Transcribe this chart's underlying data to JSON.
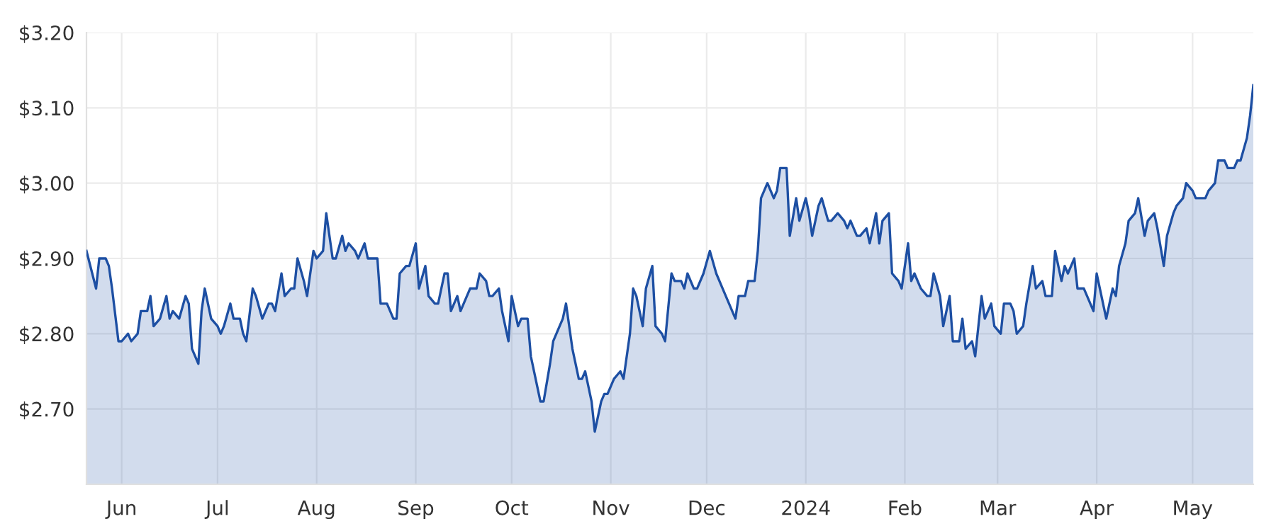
{
  "chart_data": {
    "type": "area",
    "x": [
      "2023-05-21",
      "2023-05-24",
      "2023-05-25",
      "2023-05-27",
      "2023-05-28",
      "2023-05-29",
      "2023-05-31",
      "2023-06-01",
      "2023-06-03",
      "2023-06-04",
      "2023-06-06",
      "2023-06-07",
      "2023-06-09",
      "2023-06-10",
      "2023-06-11",
      "2023-06-13",
      "2023-06-15",
      "2023-06-16",
      "2023-06-17",
      "2023-06-19",
      "2023-06-21",
      "2023-06-22",
      "2023-06-23",
      "2023-06-25",
      "2023-06-26",
      "2023-06-27",
      "2023-06-29",
      "2023-07-01",
      "2023-07-02",
      "2023-07-03",
      "2023-07-05",
      "2023-07-06",
      "2023-07-08",
      "2023-07-09",
      "2023-07-10",
      "2023-07-12",
      "2023-07-13",
      "2023-07-15",
      "2023-07-17",
      "2023-07-18",
      "2023-07-19",
      "2023-07-21",
      "2023-07-22",
      "2023-07-24",
      "2023-07-25",
      "2023-07-26",
      "2023-07-28",
      "2023-07-29",
      "2023-07-31",
      "2023-08-01",
      "2023-08-03",
      "2023-08-04",
      "2023-08-06",
      "2023-08-07",
      "2023-08-09",
      "2023-08-10",
      "2023-08-11",
      "2023-08-13",
      "2023-08-14",
      "2023-08-16",
      "2023-08-17",
      "2023-08-20",
      "2023-08-21",
      "2023-08-23",
      "2023-08-25",
      "2023-08-26",
      "2023-08-27",
      "2023-08-29",
      "2023-08-30",
      "2023-09-01",
      "2023-09-02",
      "2023-09-04",
      "2023-09-05",
      "2023-09-07",
      "2023-09-08",
      "2023-09-10",
      "2023-09-11",
      "2023-09-12",
      "2023-09-14",
      "2023-09-15",
      "2023-09-17",
      "2023-09-18",
      "2023-09-20",
      "2023-09-21",
      "2023-09-23",
      "2023-09-24",
      "2023-09-25",
      "2023-09-27",
      "2023-09-28",
      "2023-09-30",
      "2023-10-01",
      "2023-10-03",
      "2023-10-04",
      "2023-10-06",
      "2023-10-07",
      "2023-10-10",
      "2023-10-11",
      "2023-10-13",
      "2023-10-14",
      "2023-10-16",
      "2023-10-17",
      "2023-10-18",
      "2023-10-20",
      "2023-10-22",
      "2023-10-23",
      "2023-10-24",
      "2023-10-26",
      "2023-10-27",
      "2023-10-29",
      "2023-10-30",
      "2023-10-31",
      "2023-11-02",
      "2023-11-04",
      "2023-11-05",
      "2023-11-07",
      "2023-11-08",
      "2023-11-09",
      "2023-11-11",
      "2023-11-12",
      "2023-11-14",
      "2023-11-15",
      "2023-11-17",
      "2023-11-18",
      "2023-11-20",
      "2023-11-21",
      "2023-11-23",
      "2023-11-24",
      "2023-11-25",
      "2023-11-27",
      "2023-11-28",
      "2023-11-30",
      "2023-12-02",
      "2023-12-04",
      "2023-12-06",
      "2023-12-08",
      "2023-12-10",
      "2023-12-11",
      "2023-12-13",
      "2023-12-14",
      "2023-12-16",
      "2023-12-17",
      "2023-12-18",
      "2023-12-20",
      "2023-12-22",
      "2023-12-23",
      "2023-12-24",
      "2023-12-26",
      "2023-12-27",
      "2023-12-29",
      "2023-12-30",
      "2024-01-01",
      "2024-01-02",
      "2024-01-03",
      "2024-01-05",
      "2024-01-06",
      "2024-01-08",
      "2024-01-09",
      "2024-01-11",
      "2024-01-13",
      "2024-01-14",
      "2024-01-15",
      "2024-01-17",
      "2024-01-18",
      "2024-01-20",
      "2024-01-21",
      "2024-01-23",
      "2024-01-24",
      "2024-01-25",
      "2024-01-27",
      "2024-01-28",
      "2024-01-30",
      "2024-01-31",
      "2024-02-02",
      "2024-02-03",
      "2024-02-04",
      "2024-02-06",
      "2024-02-08",
      "2024-02-09",
      "2024-02-10",
      "2024-02-12",
      "2024-02-13",
      "2024-02-15",
      "2024-02-16",
      "2024-02-18",
      "2024-02-19",
      "2024-02-20",
      "2024-02-22",
      "2024-02-23",
      "2024-02-25",
      "2024-02-26",
      "2024-02-28",
      "2024-02-29",
      "2024-03-02",
      "2024-03-03",
      "2024-03-05",
      "2024-03-06",
      "2024-03-07",
      "2024-03-09",
      "2024-03-10",
      "2024-03-12",
      "2024-03-13",
      "2024-03-15",
      "2024-03-16",
      "2024-03-18",
      "2024-03-19",
      "2024-03-21",
      "2024-03-22",
      "2024-03-23",
      "2024-03-25",
      "2024-03-26",
      "2024-03-28",
      "2024-03-29",
      "2024-03-31",
      "2024-04-01",
      "2024-04-02",
      "2024-04-04",
      "2024-04-06",
      "2024-04-07",
      "2024-04-08",
      "2024-04-10",
      "2024-04-11",
      "2024-04-13",
      "2024-04-14",
      "2024-04-16",
      "2024-04-17",
      "2024-04-19",
      "2024-04-20",
      "2024-04-22",
      "2024-04-23",
      "2024-04-25",
      "2024-04-26",
      "2024-04-28",
      "2024-04-29",
      "2024-05-01",
      "2024-05-02",
      "2024-05-05",
      "2024-05-06",
      "2024-05-08",
      "2024-05-09",
      "2024-05-11",
      "2024-05-12",
      "2024-05-14",
      "2024-05-15",
      "2024-05-16",
      "2024-05-18",
      "2024-05-19",
      "2024-05-20"
    ],
    "series": [
      {
        "color": "#1d4fa3",
        "values": [
          2.91,
          2.86,
          2.9,
          2.9,
          2.89,
          2.86,
          2.79,
          2.79,
          2.8,
          2.79,
          2.8,
          2.83,
          2.83,
          2.85,
          2.81,
          2.82,
          2.85,
          2.82,
          2.83,
          2.82,
          2.85,
          2.84,
          2.78,
          2.76,
          2.83,
          2.86,
          2.82,
          2.81,
          2.8,
          2.81,
          2.84,
          2.82,
          2.82,
          2.8,
          2.79,
          2.86,
          2.85,
          2.82,
          2.84,
          2.84,
          2.83,
          2.88,
          2.85,
          2.86,
          2.86,
          2.9,
          2.87,
          2.85,
          2.91,
          2.9,
          2.91,
          2.96,
          2.9,
          2.9,
          2.93,
          2.91,
          2.92,
          2.91,
          2.9,
          2.92,
          2.9,
          2.9,
          2.84,
          2.84,
          2.82,
          2.82,
          2.88,
          2.89,
          2.89,
          2.92,
          2.86,
          2.89,
          2.85,
          2.84,
          2.84,
          2.88,
          2.88,
          2.83,
          2.85,
          2.83,
          2.85,
          2.86,
          2.86,
          2.88,
          2.87,
          2.85,
          2.85,
          2.86,
          2.83,
          2.79,
          2.85,
          2.81,
          2.82,
          2.82,
          2.77,
          2.71,
          2.71,
          2.76,
          2.79,
          2.81,
          2.82,
          2.84,
          2.78,
          2.74,
          2.74,
          2.75,
          2.71,
          2.67,
          2.71,
          2.72,
          2.72,
          2.74,
          2.75,
          2.74,
          2.8,
          2.86,
          2.85,
          2.81,
          2.86,
          2.89,
          2.81,
          2.8,
          2.79,
          2.88,
          2.87,
          2.87,
          2.86,
          2.88,
          2.86,
          2.86,
          2.88,
          2.91,
          2.88,
          2.86,
          2.84,
          2.82,
          2.85,
          2.85,
          2.87,
          2.87,
          2.91,
          2.98,
          3.0,
          2.98,
          2.99,
          3.02,
          3.02,
          2.93,
          2.98,
          2.95,
          2.98,
          2.96,
          2.93,
          2.97,
          2.98,
          2.95,
          2.95,
          2.96,
          2.95,
          2.94,
          2.95,
          2.93,
          2.93,
          2.94,
          2.92,
          2.96,
          2.92,
          2.95,
          2.96,
          2.88,
          2.87,
          2.86,
          2.92,
          2.87,
          2.88,
          2.86,
          2.85,
          2.85,
          2.88,
          2.85,
          2.81,
          2.85,
          2.79,
          2.79,
          2.82,
          2.78,
          2.79,
          2.77,
          2.85,
          2.82,
          2.84,
          2.81,
          2.8,
          2.84,
          2.84,
          2.83,
          2.8,
          2.81,
          2.84,
          2.89,
          2.86,
          2.87,
          2.85,
          2.85,
          2.91,
          2.87,
          2.89,
          2.88,
          2.9,
          2.86,
          2.86,
          2.85,
          2.83,
          2.88,
          2.86,
          2.82,
          2.86,
          2.85,
          2.89,
          2.92,
          2.95,
          2.96,
          2.98,
          2.93,
          2.95,
          2.96,
          2.94,
          2.89,
          2.93,
          2.96,
          2.97,
          2.98,
          3.0,
          2.99,
          2.98,
          2.98,
          2.99,
          3.0,
          3.03,
          3.03,
          3.02,
          3.02,
          3.03,
          3.03,
          3.06,
          3.09,
          3.13
        ]
      }
    ],
    "xlim": [
      "2023-05-21",
      "2024-05-20"
    ],
    "xticks": [
      {
        "value": "2023-06-01",
        "label": "Jun"
      },
      {
        "value": "2023-07-01",
        "label": "Jul"
      },
      {
        "value": "2023-08-01",
        "label": "Aug"
      },
      {
        "value": "2023-09-01",
        "label": "Sep"
      },
      {
        "value": "2023-10-01",
        "label": "Oct"
      },
      {
        "value": "2023-11-01",
        "label": "Nov"
      },
      {
        "value": "2023-12-01",
        "label": "Dec"
      },
      {
        "value": "2024-01-01",
        "label": "2024"
      },
      {
        "value": "2024-02-01",
        "label": "Feb"
      },
      {
        "value": "2024-03-01",
        "label": "Mar"
      },
      {
        "value": "2024-04-01",
        "label": "Apr"
      },
      {
        "value": "2024-05-01",
        "label": "May"
      }
    ],
    "ylim": [
      2.6,
      3.2
    ],
    "yticks": [
      {
        "value": 2.7,
        "label": "$2.70"
      },
      {
        "value": 2.8,
        "label": "$2.80"
      },
      {
        "value": 2.9,
        "label": "$2.90"
      },
      {
        "value": 3.0,
        "label": "$3.00"
      },
      {
        "value": 3.1,
        "label": "$3.10"
      },
      {
        "value": 3.2,
        "label": "$3.20"
      }
    ],
    "grid": true,
    "line_style": "solid",
    "marker": "none"
  }
}
